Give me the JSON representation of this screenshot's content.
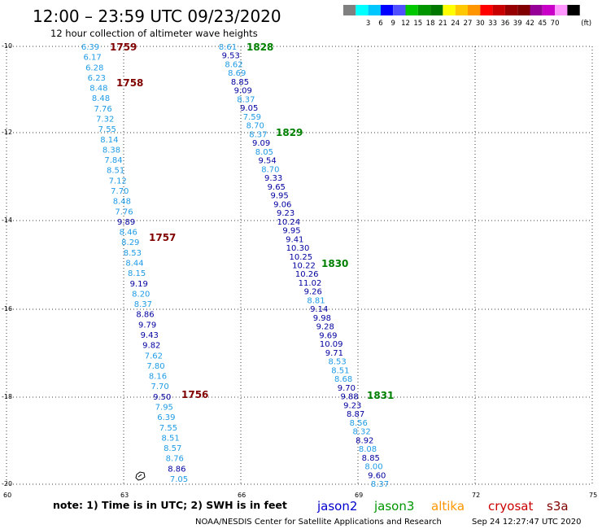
{
  "header": {
    "title": "12:00 – 23:59 UTC 09/23/2020",
    "subtitle": "12 hour collection of altimeter wave heights"
  },
  "legend": {
    "colors": [
      "#808080",
      "#00ffff",
      "#00c8ff",
      "#0000ff",
      "#5050ff",
      "#00c800",
      "#009600",
      "#007800",
      "#ffff00",
      "#ffc800",
      "#ff9600",
      "#ff0000",
      "#c80000",
      "#960000",
      "#800000",
      "#960096",
      "#c800c8",
      "#ff96ff",
      "#000000"
    ],
    "labels": [
      "3",
      "6",
      "9",
      "12",
      "15",
      "18",
      "21",
      "24",
      "27",
      "30",
      "33",
      "36",
      "39",
      "42",
      "45",
      "70"
    ],
    "unit": "(ft)"
  },
  "axes": {
    "lat_labels": [
      "-10",
      "-12",
      "-14",
      "-16",
      "-18",
      "-20"
    ],
    "lon_labels": [
      "60",
      "63",
      "66",
      "69",
      "72",
      "75"
    ]
  },
  "scale_colors": {
    "low": "#1e9be6",
    "high": "#0000a0"
  },
  "track_west": {
    "color": "#800000",
    "values": [
      "6.39",
      "6.17",
      "6.28",
      "6.23",
      "8.48",
      "8.48",
      "7.76",
      "7.32",
      "7.55",
      "8.14",
      "8.38",
      "7.84",
      "8.51",
      "7.12",
      "7.70",
      "8.48",
      "7.76",
      "9.89",
      "8.46",
      "8.29",
      "8.53",
      "8.44",
      "8.15",
      "9.19",
      "8.20",
      "8.37",
      "8.86",
      "9.79",
      "9.43",
      "9.82",
      "7.62",
      "7.80",
      "8.16",
      "7.70",
      "9.50",
      "7.95",
      "6.39",
      "7.55",
      "8.51",
      "8.57",
      "8.76",
      "8.86",
      "7.05"
    ],
    "times": [
      "1759",
      "1758",
      "1757",
      "1756"
    ]
  },
  "track_east": {
    "color": "#008000",
    "values": [
      "8.61",
      "9.53",
      "8.62",
      "8.69",
      "8.85",
      "9.09",
      "8.37",
      "9.05",
      "7.59",
      "8.70",
      "8.37",
      "9.09",
      "8.05",
      "9.54",
      "8.70",
      "9.33",
      "9.65",
      "9.95",
      "9.06",
      "9.23",
      "10.24",
      "9.95",
      "9.41",
      "10.30",
      "10.25",
      "10.22",
      "10.26",
      "11.02",
      "9.26",
      "8.81",
      "9.14",
      "9.98",
      "9.28",
      "9.69",
      "10.09",
      "9.71",
      "8.53",
      "8.51",
      "8.68",
      "9.70",
      "9.88",
      "9.23",
      "8.87",
      "8.56",
      "8.32",
      "8.92",
      "8.08",
      "8.85",
      "8.00",
      "9.60",
      "8.37"
    ],
    "times": [
      "1828",
      "1829",
      "1830",
      "1831"
    ]
  },
  "footer": {
    "note": "note:  1) Time is in UTC;  2) SWH is in feet",
    "satellites": [
      {
        "name": "jason2",
        "color": "#0000cc"
      },
      {
        "name": "jason3",
        "color": "#009600"
      },
      {
        "name": "altika",
        "color": "#ff9600"
      },
      {
        "name": "cryosat",
        "color": "#cc0000"
      },
      {
        "name": "s3a",
        "color": "#800000"
      }
    ],
    "credit": "NOAA/NESDIS Center for Satellite Applications and Research",
    "timestamp": "Sep 24 12:27:47 UTC 2020"
  }
}
